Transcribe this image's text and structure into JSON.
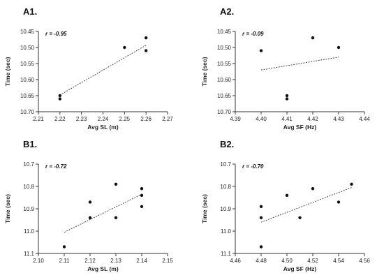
{
  "chart_data": [
    {
      "panel": "A1.",
      "type": "scatter",
      "annotation": "r = -0.95",
      "xlabel": "Avg SL (m)",
      "ylabel": "Time (sec)",
      "x_ticks": [
        "2.21",
        "2.22",
        "2.23",
        "2.24",
        "2.25",
        "2.26",
        "2.27"
      ],
      "y_ticks": [
        "10.45",
        "10.50",
        "10.55",
        "10.60",
        "10.65",
        "10.70"
      ],
      "xlim": [
        2.21,
        2.27
      ],
      "ylim": [
        10.45,
        10.7
      ],
      "y_inverted": true,
      "points": [
        {
          "x": 2.22,
          "y": 10.65
        },
        {
          "x": 2.22,
          "y": 10.66
        },
        {
          "x": 2.25,
          "y": 10.5
        },
        {
          "x": 2.26,
          "y": 10.47
        },
        {
          "x": 2.26,
          "y": 10.51
        }
      ],
      "trendline": [
        {
          "x": 2.22,
          "y": 10.648
        },
        {
          "x": 2.26,
          "y": 10.493
        }
      ]
    },
    {
      "panel": "A2.",
      "type": "scatter",
      "annotation": "r = -0.09",
      "xlabel": "Avg SF (Hz)",
      "ylabel": "Time (sec)",
      "x_ticks": [
        "4.39",
        "4.40",
        "4.41",
        "4.42",
        "4.43",
        "4.44"
      ],
      "y_ticks": [
        "10.45",
        "10.50",
        "10.55",
        "10.60",
        "10.65",
        "10.70"
      ],
      "xlim": [
        4.39,
        4.44
      ],
      "ylim": [
        10.45,
        10.7
      ],
      "y_inverted": true,
      "points": [
        {
          "x": 4.4,
          "y": 10.51
        },
        {
          "x": 4.41,
          "y": 10.65
        },
        {
          "x": 4.41,
          "y": 10.66
        },
        {
          "x": 4.42,
          "y": 10.47
        },
        {
          "x": 4.43,
          "y": 10.5
        }
      ],
      "trendline": [
        {
          "x": 4.4,
          "y": 10.57
        },
        {
          "x": 4.43,
          "y": 10.53
        }
      ]
    },
    {
      "panel": "B1.",
      "type": "scatter",
      "annotation": "r = -0.72",
      "xlabel": "Avg SL (m)",
      "ylabel": "Time (sec)",
      "x_ticks": [
        "2.10",
        "2.11",
        "2.12",
        "2.13",
        "2.14",
        "2.15"
      ],
      "y_ticks": [
        "10.7",
        "10.8",
        "10.9",
        "11.0",
        "11.1"
      ],
      "xlim": [
        2.1,
        2.15
      ],
      "ylim": [
        10.7,
        11.1
      ],
      "y_inverted": true,
      "points": [
        {
          "x": 2.11,
          "y": 11.07
        },
        {
          "x": 2.12,
          "y": 10.87
        },
        {
          "x": 2.12,
          "y": 10.94
        },
        {
          "x": 2.13,
          "y": 10.79
        },
        {
          "x": 2.13,
          "y": 10.94
        },
        {
          "x": 2.14,
          "y": 10.81
        },
        {
          "x": 2.14,
          "y": 10.84
        },
        {
          "x": 2.14,
          "y": 10.89
        }
      ],
      "trendline": [
        {
          "x": 2.11,
          "y": 11.005
        },
        {
          "x": 2.14,
          "y": 10.835
        }
      ]
    },
    {
      "panel": "B2.",
      "type": "scatter",
      "annotation": "r = -0.70",
      "xlabel": "Avg SF (Hz)",
      "ylabel": "Time (sec)",
      "x_ticks": [
        "4.46",
        "4.48",
        "4.50",
        "4.52",
        "4.54",
        "4.56"
      ],
      "y_ticks": [
        "10.7",
        "10.8",
        "10.9",
        "11.0",
        "11.1"
      ],
      "xlim": [
        4.46,
        4.56
      ],
      "ylim": [
        10.7,
        11.1
      ],
      "y_inverted": true,
      "points": [
        {
          "x": 4.48,
          "y": 10.89
        },
        {
          "x": 4.48,
          "y": 10.94
        },
        {
          "x": 4.48,
          "y": 11.07
        },
        {
          "x": 4.5,
          "y": 10.84
        },
        {
          "x": 4.51,
          "y": 10.94
        },
        {
          "x": 4.52,
          "y": 10.81
        },
        {
          "x": 4.54,
          "y": 10.87
        },
        {
          "x": 4.55,
          "y": 10.79
        }
      ],
      "trendline": [
        {
          "x": 4.48,
          "y": 10.96
        },
        {
          "x": 4.55,
          "y": 10.805
        }
      ]
    }
  ]
}
